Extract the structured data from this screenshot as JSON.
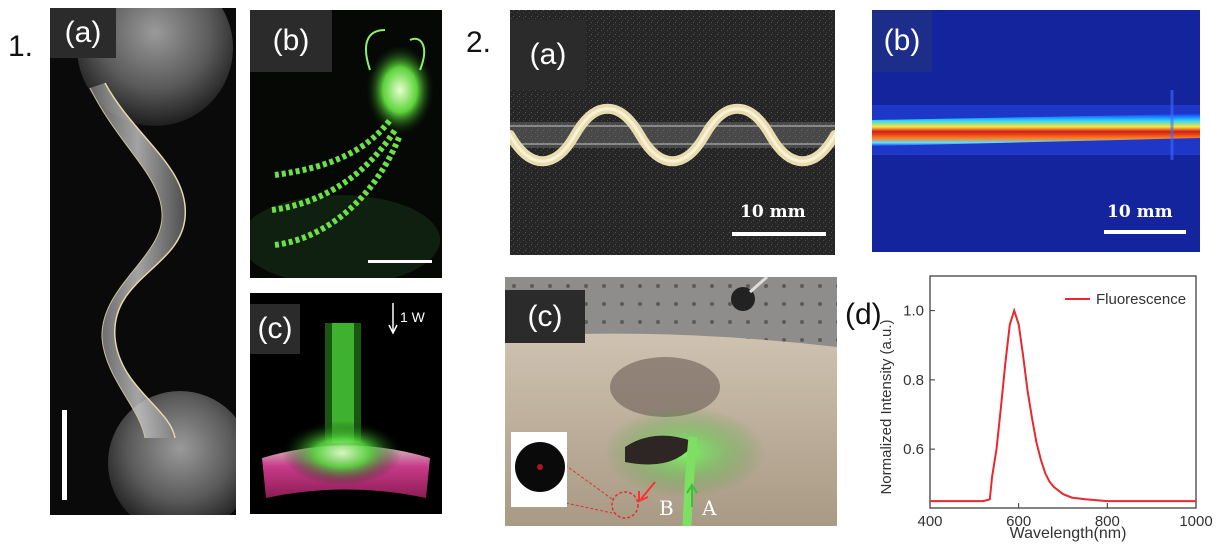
{
  "figure1": {
    "number": "1.",
    "a": {
      "label": "(a)"
    },
    "b": {
      "label": "(b)"
    },
    "c": {
      "label": "(c)",
      "power": "1 W"
    }
  },
  "figure2": {
    "number": "2.",
    "a": {
      "label": "(a)",
      "scale": "10 mm"
    },
    "b": {
      "label": "(b)",
      "scale": "10 mm"
    },
    "c": {
      "label": "(c)",
      "marker_a": "A",
      "marker_b": "B"
    },
    "d": {
      "label": "(d)"
    }
  },
  "colors": {
    "fluorescence": "#e8282c",
    "label_bg": "#2b2b2b",
    "glow_green": "#4cff3a"
  },
  "chart_data": {
    "type": "line",
    "xlabel": "Wavelength(nm)",
    "ylabel": "Normalized Intensity (a.u.)",
    "xlim": [
      400,
      1000
    ],
    "ylim": [
      0.43,
      1.1
    ],
    "xticks": [
      400,
      600,
      800,
      1000
    ],
    "yticks": [
      0.6,
      0.8,
      1.0
    ],
    "xtick_labels": [
      "400",
      "600",
      "800",
      "1000"
    ],
    "ytick_labels": [
      "0.6",
      "0.8",
      "1.0"
    ],
    "legend": "top-right",
    "series": [
      {
        "name": "Fluorescence",
        "color": "#e8282c",
        "x": [
          400,
          450,
          500,
          520,
          535,
          540,
          550,
          560,
          570,
          580,
          590,
          600,
          610,
          620,
          630,
          640,
          650,
          660,
          670,
          680,
          700,
          720,
          750,
          800,
          850,
          900,
          1000
        ],
        "y": [
          0.45,
          0.45,
          0.45,
          0.45,
          0.455,
          0.52,
          0.6,
          0.72,
          0.85,
          0.96,
          1.0,
          0.96,
          0.87,
          0.77,
          0.69,
          0.62,
          0.57,
          0.53,
          0.505,
          0.49,
          0.47,
          0.46,
          0.455,
          0.45,
          0.45,
          0.45,
          0.45
        ]
      }
    ]
  }
}
